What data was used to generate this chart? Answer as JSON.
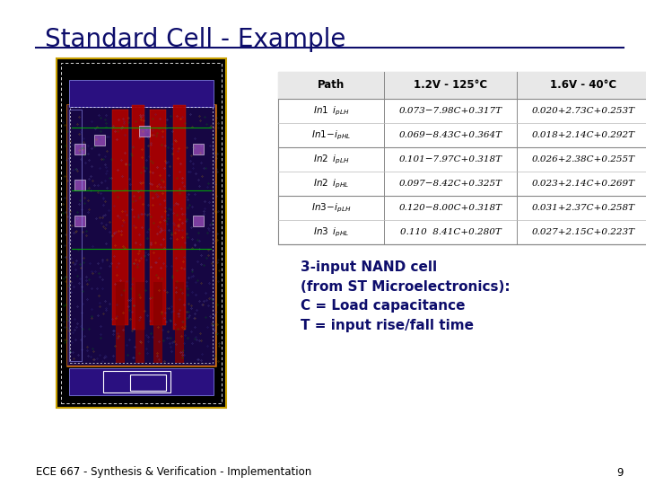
{
  "title": "Standard Cell - Example",
  "title_color": "#0d0d6b",
  "title_fontsize": 20,
  "bg_color": "#ffffff",
  "footer_text": "ECE 667 - Synthesis & Verification - Implementation",
  "footer_page": "9",
  "footer_fontsize": 8.5,
  "annotation_text": "3-input NAND cell\n(from ST Microelectronics):\nC = Load capacitance\nT = input rise/fall time",
  "annotation_color": "#0d0d6b",
  "annotation_fontsize": 11,
  "table_header_raw": [
    "Path",
    "1.2V - 125°C",
    "1.6V - 40°C"
  ],
  "col1_values": [
    "0.073−7.98C+0.317T",
    "0.069−8.43C+0.364T",
    "0.101−7.97C+0.318T",
    "0.097−8.42C+0.325T",
    "0.120−8.00C+0.318T",
    "0.110  8.41C+0.280T"
  ],
  "col2_values": [
    "0.020+2.73C+0.253T",
    "0.018+2.14C+0.292T",
    "0.026+2.38C+0.255T",
    "0.023+2.14C+0.269T",
    "0.031+2.37C+0.258T",
    "0.027+2.15C+0.223T"
  ]
}
